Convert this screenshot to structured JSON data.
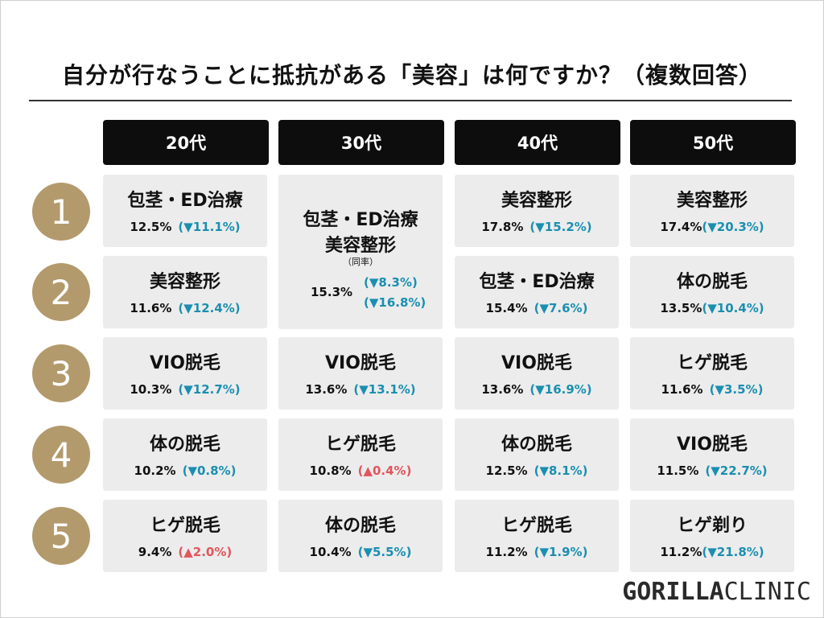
{
  "title": "自分が行なうことに抵抗がある「美容」は何ですか？（複数回答）",
  "colors": {
    "down": "#1a8fb0",
    "up": "#e0565c",
    "rank_circle": "#b39a6c",
    "header_bg": "#0d0d0d"
  },
  "chart_data": {
    "type": "table",
    "title": "自分が行なうことに抵抗がある「美容」は何ですか？（複数回答）",
    "columns": [
      "20代",
      "30代",
      "40代",
      "50代"
    ],
    "ranks": [
      "1",
      "2",
      "3",
      "4",
      "5"
    ],
    "col20": {
      "r1": {
        "item": "包茎・ED治療",
        "pct": "12.5%",
        "chg": "(▼11.1%)",
        "dir": "down"
      },
      "r2": {
        "item": "美容整形",
        "pct": "11.6%",
        "chg": "(▼12.4%)",
        "dir": "down"
      },
      "r3": {
        "item": "VIO脱毛",
        "pct": "10.3%",
        "chg": "(▼12.7%)",
        "dir": "down"
      },
      "r4": {
        "item": "体の脱毛",
        "pct": "10.2%",
        "chg": "(▼0.8%)",
        "dir": "down"
      },
      "r5": {
        "item": "ヒゲ脱毛",
        "pct": "9.4%",
        "chg": "(▲2.0%)",
        "dir": "up"
      }
    },
    "col30": {
      "r12": {
        "item1": "包茎・ED治療",
        "item2": "美容整形",
        "note": "（同率）",
        "pct": "15.3%",
        "chg1": "(▼8.3%)",
        "chg2": "(▼16.8%)"
      },
      "r3": {
        "item": "VIO脱毛",
        "pct": "13.6%",
        "chg": "(▼13.1%)",
        "dir": "down"
      },
      "r4": {
        "item": "ヒゲ脱毛",
        "pct": "10.8%",
        "chg": "(▲0.4%)",
        "dir": "up"
      },
      "r5": {
        "item": "体の脱毛",
        "pct": "10.4%",
        "chg": "(▼5.5%)",
        "dir": "down"
      }
    },
    "col40": {
      "r1": {
        "item": "美容整形",
        "pct": "17.8%",
        "chg": "(▼15.2%)",
        "dir": "down"
      },
      "r2": {
        "item": "包茎・ED治療",
        "pct": "15.4%",
        "chg": "(▼7.6%)",
        "dir": "down"
      },
      "r3": {
        "item": "VIO脱毛",
        "pct": "13.6%",
        "chg": "(▼16.9%)",
        "dir": "down"
      },
      "r4": {
        "item": "体の脱毛",
        "pct": "12.5%",
        "chg": "(▼8.1%)",
        "dir": "down"
      },
      "r5": {
        "item": "ヒゲ脱毛",
        "pct": "11.2%",
        "chg": "(▼1.9%)",
        "dir": "down"
      }
    },
    "col50": {
      "r1": {
        "item": "美容整形",
        "pct": "17.4%",
        "chg": "(▼20.3%)",
        "dir": "down"
      },
      "r2": {
        "item": "体の脱毛",
        "pct": "13.5%",
        "chg": "(▼10.4%)",
        "dir": "down"
      },
      "r3": {
        "item": "ヒゲ脱毛",
        "pct": "11.6%",
        "chg": "(▼3.5%)",
        "dir": "down"
      },
      "r4": {
        "item": "VIO脱毛",
        "pct": "11.5%",
        "chg": "(▼22.7%)",
        "dir": "down"
      },
      "r5": {
        "item": "ヒゲ剃り",
        "pct": "11.2%",
        "chg": "(▼21.8%)",
        "dir": "down"
      }
    }
  },
  "logo": {
    "part1": "GORILLA",
    "part2": "CLINIC"
  }
}
